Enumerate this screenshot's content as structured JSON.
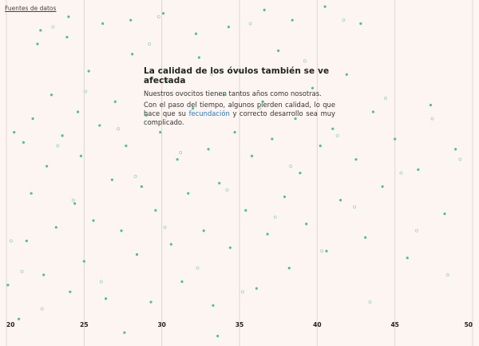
{
  "source_link": "Fuentes de datos",
  "textbox": {
    "title": "La calidad de los óvulos también se ve afectada",
    "paragraph1": "Nuestros ovocitos tienen tantos años como nosotras.",
    "paragraph2_before": "Con el paso del tiempo, algunos pierden calidad, lo que hace que su ",
    "paragraph2_link": "fecundación",
    "paragraph2_after": " y correcto desarrollo sea muy complicado."
  },
  "colors": {
    "background": "#fdf5f1",
    "gridline": "#e0d6d1",
    "dot_filled": "#4fbf9c",
    "dot_hollow": "#9fd6c3",
    "link": "#2878c0"
  },
  "chart_data": {
    "type": "scatter",
    "x_ticks": [
      20,
      25,
      30,
      35,
      40,
      45,
      50
    ],
    "xlim": [
      20,
      50
    ],
    "grid": true,
    "series": [
      {
        "style": "filled",
        "x": [
          20.1,
          20.5,
          21.1,
          21.3,
          21.6,
          21.7,
          22.0,
          22.4,
          22.6,
          22.9,
          23.2,
          23.6,
          23.9,
          24.1,
          24.4,
          24.6,
          24.8,
          25.0,
          25.3,
          25.6,
          26.0,
          26.4,
          26.8,
          27.0,
          27.4,
          27.7,
          28.1,
          28.4,
          28.7,
          29.0,
          29.3,
          29.6,
          29.9,
          30.3,
          30.6,
          31.0,
          31.3,
          31.7,
          32.0,
          32.4,
          32.7,
          33.0,
          33.3,
          33.7,
          34.0,
          34.4,
          34.7,
          35.0,
          35.4,
          35.8,
          36.1,
          36.5,
          36.8,
          37.1,
          37.5,
          37.9,
          38.2,
          38.6,
          38.9,
          39.3,
          39.7,
          40.2,
          40.6,
          41.0,
          41.5,
          41.9,
          42.5,
          43.1,
          43.6,
          44.2,
          45.0,
          45.8,
          46.5,
          47.3,
          48.2,
          48.9,
          20.8,
          22.2,
          24.0,
          26.2,
          28.0,
          30.1,
          32.2,
          34.3,
          36.6,
          38.4,
          40.5,
          42.8,
          27.6,
          33.6
        ],
        "y": [
          0.17,
          0.62,
          0.59,
          0.3,
          0.44,
          0.66,
          0.88,
          0.2,
          0.52,
          0.73,
          0.34,
          0.61,
          0.9,
          0.15,
          0.41,
          0.68,
          0.55,
          0.24,
          0.8,
          0.36,
          0.64,
          0.13,
          0.48,
          0.71,
          0.33,
          0.58,
          0.85,
          0.26,
          0.46,
          0.67,
          0.12,
          0.39,
          0.62,
          0.77,
          0.29,
          0.54,
          0.18,
          0.44,
          0.69,
          0.84,
          0.33,
          0.57,
          0.11,
          0.47,
          0.73,
          0.28,
          0.62,
          0.8,
          0.39,
          0.55,
          0.16,
          0.71,
          0.32,
          0.6,
          0.86,
          0.43,
          0.22,
          0.66,
          0.5,
          0.35,
          0.75,
          0.58,
          0.27,
          0.63,
          0.42,
          0.79,
          0.54,
          0.31,
          0.68,
          0.46,
          0.6,
          0.25,
          0.51,
          0.7,
          0.38,
          0.57,
          0.07,
          0.92,
          0.96,
          0.94,
          0.95,
          0.97,
          0.91,
          0.93,
          0.98,
          0.95,
          0.99,
          0.94,
          0.03,
          0.02
        ]
      },
      {
        "style": "hollow",
        "x": [
          20.3,
          21.0,
          22.3,
          23.3,
          24.3,
          25.1,
          26.1,
          27.2,
          28.3,
          29.2,
          30.2,
          31.2,
          32.3,
          33.2,
          34.2,
          35.2,
          36.3,
          37.3,
          38.3,
          39.2,
          40.3,
          41.3,
          42.4,
          43.4,
          44.4,
          45.4,
          46.4,
          47.4,
          48.4,
          49.2,
          23.0,
          29.8,
          35.7,
          41.7
        ],
        "y": [
          0.3,
          0.21,
          0.1,
          0.58,
          0.42,
          0.74,
          0.18,
          0.63,
          0.49,
          0.88,
          0.34,
          0.56,
          0.22,
          0.79,
          0.45,
          0.15,
          0.69,
          0.37,
          0.52,
          0.83,
          0.27,
          0.61,
          0.4,
          0.12,
          0.72,
          0.5,
          0.33,
          0.66,
          0.2,
          0.54,
          0.93,
          0.96,
          0.94,
          0.95
        ]
      }
    ]
  }
}
